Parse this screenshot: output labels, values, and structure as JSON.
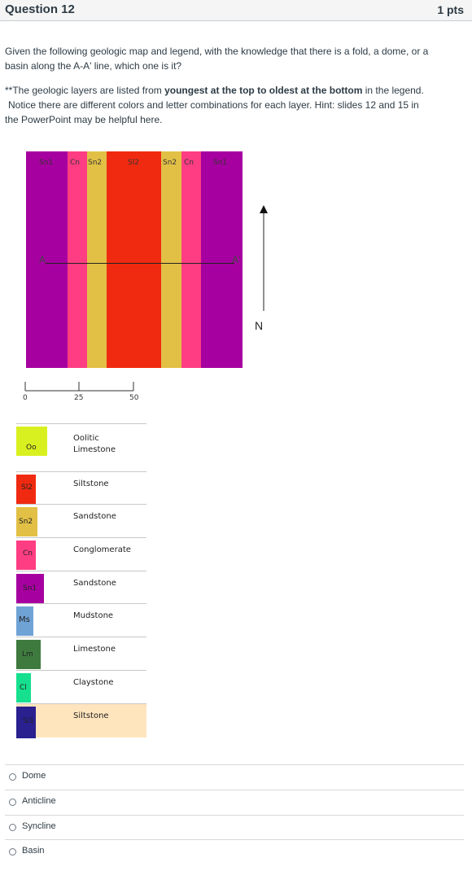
{
  "question": {
    "title": "Question 12",
    "points": "1 pts",
    "prompt_line1": "Given the following geologic map and legend, with the knowledge that there is a fold, a dome, or a",
    "prompt_line2": "basin along the A-A' line, which one is it?",
    "note_prefix": "**The geologic layers are listed from ",
    "note_bold": "youngest at the top to oldest at the bottom",
    "note_suffix": " in the legend.",
    "note_line2": "Notice there are different colors and letter combinations for each layer.  Hint: slides 12 and 15 in",
    "note_line3": "the PowerPoint may be helpful here."
  },
  "map": {
    "strips": [
      {
        "code": "Sn1",
        "color": "#a700a0"
      },
      {
        "code": "Cn",
        "color": "#ff3d82"
      },
      {
        "code": "Sn2",
        "color": "#e2c046"
      },
      {
        "code": "Sl2",
        "color": "#f02a10"
      },
      {
        "code": "Sn2",
        "color": "#e2c046"
      },
      {
        "code": "Cn",
        "color": "#ff3d82"
      },
      {
        "code": "Sn1",
        "color": "#a700a0"
      }
    ],
    "label_a": "A",
    "label_a_prime": "A'",
    "north_label": "N",
    "scale": [
      "0",
      "25",
      "50"
    ]
  },
  "legend": [
    {
      "code": "Oo",
      "name_line1": "Oolitic",
      "name_line2": "Limestone",
      "color": "#d9f020"
    },
    {
      "code": "Sl2",
      "name_line1": "Siltstone",
      "name_line2": "",
      "color": "#f02a10"
    },
    {
      "code": "Sn2",
      "name_line1": "Sandstone",
      "name_line2": "",
      "color": "#e2c046"
    },
    {
      "code": "Cn",
      "name_line1": "Conglomerate",
      "name_line2": "",
      "color": "#ff3d82"
    },
    {
      "code": "Sn1",
      "name_line1": "Sandstone",
      "name_line2": "",
      "color": "#a700a0"
    },
    {
      "code": "Ms",
      "name_line1": "Mudstone",
      "name_line2": "",
      "color": "#6fa3d6"
    },
    {
      "code": "Lm",
      "name_line1": "Limestone",
      "name_line2": "",
      "color": "#3e7a3e"
    },
    {
      "code": "Cl",
      "name_line1": "Claystone",
      "name_line2": "",
      "color": "#16e08e"
    },
    {
      "code": "Sl1",
      "name_line1": "Siltstone",
      "name_line2": "",
      "color": "#2a2090"
    }
  ],
  "answers": [
    {
      "label": "Dome"
    },
    {
      "label": "Anticline"
    },
    {
      "label": "Syncline"
    },
    {
      "label": "Basin"
    }
  ]
}
